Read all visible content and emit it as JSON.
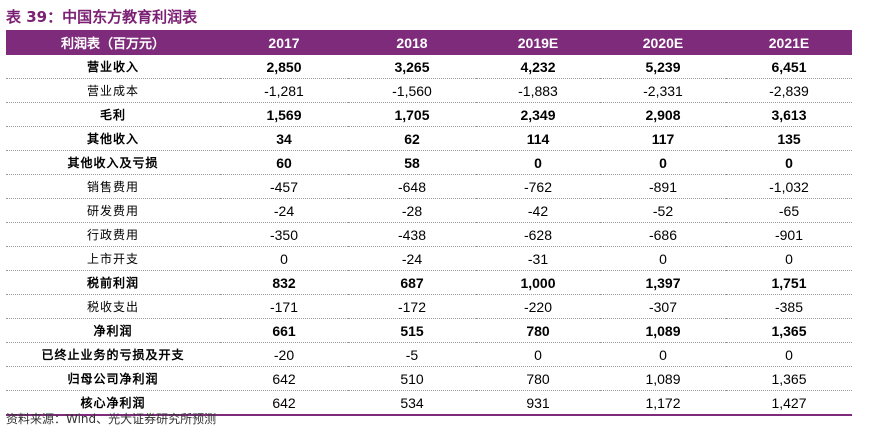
{
  "title": "表 39：中国东方教育利润表",
  "table": {
    "headers": [
      "利润表（百万元）",
      "2017",
      "2018",
      "2019E",
      "2020E",
      "2021E"
    ],
    "rows": [
      {
        "bold": true,
        "cells": [
          "营业收入",
          "2,850",
          "3,265",
          "4,232",
          "5,239",
          "6,451"
        ]
      },
      {
        "bold": false,
        "cells": [
          "营业成本",
          "-1,281",
          "-1,560",
          "-1,883",
          "-2,331",
          "-2,839"
        ]
      },
      {
        "bold": true,
        "cells": [
          "毛利",
          "1,569",
          "1,705",
          "2,349",
          "2,908",
          "3,613"
        ]
      },
      {
        "bold": true,
        "cells": [
          "其他收入",
          "34",
          "62",
          "114",
          "117",
          "135"
        ]
      },
      {
        "bold": true,
        "cells": [
          "其他收入及亏损",
          "60",
          "58",
          "0",
          "0",
          "0"
        ]
      },
      {
        "bold": false,
        "cells": [
          "销售费用",
          "-457",
          "-648",
          "-762",
          "-891",
          "-1,032"
        ]
      },
      {
        "bold": false,
        "cells": [
          "研发费用",
          "-24",
          "-28",
          "-42",
          "-52",
          "-65"
        ]
      },
      {
        "bold": false,
        "cells": [
          "行政费用",
          "-350",
          "-438",
          "-628",
          "-686",
          "-901"
        ]
      },
      {
        "bold": false,
        "cells": [
          "上市开支",
          "0",
          "-24",
          "-31",
          "0",
          "0"
        ]
      },
      {
        "bold": true,
        "cells": [
          "税前利润",
          "832",
          "687",
          "1,000",
          "1,397",
          "1,751"
        ]
      },
      {
        "bold": false,
        "cells": [
          "税收支出",
          "-171",
          "-172",
          "-220",
          "-307",
          "-385"
        ]
      },
      {
        "bold": true,
        "cells": [
          "净利润",
          "661",
          "515",
          "780",
          "1,089",
          "1,365"
        ]
      },
      {
        "bold": false,
        "label_bold": true,
        "cells": [
          "已终止业务的亏损及开支",
          "-20",
          "-5",
          "0",
          "0",
          "0"
        ]
      },
      {
        "bold": false,
        "label_bold": true,
        "cells": [
          "归母公司净利润",
          "642",
          "510",
          "780",
          "1,089",
          "1,365"
        ]
      },
      {
        "bold": false,
        "label_bold": true,
        "cells": [
          "核心净利润",
          "642",
          "534",
          "931",
          "1,172",
          "1,427"
        ]
      }
    ]
  },
  "source": "资料来源：Wind、光大证券研究所预测",
  "colors": {
    "header_bg": "#7e2b7b",
    "title": "#7a1f73"
  }
}
